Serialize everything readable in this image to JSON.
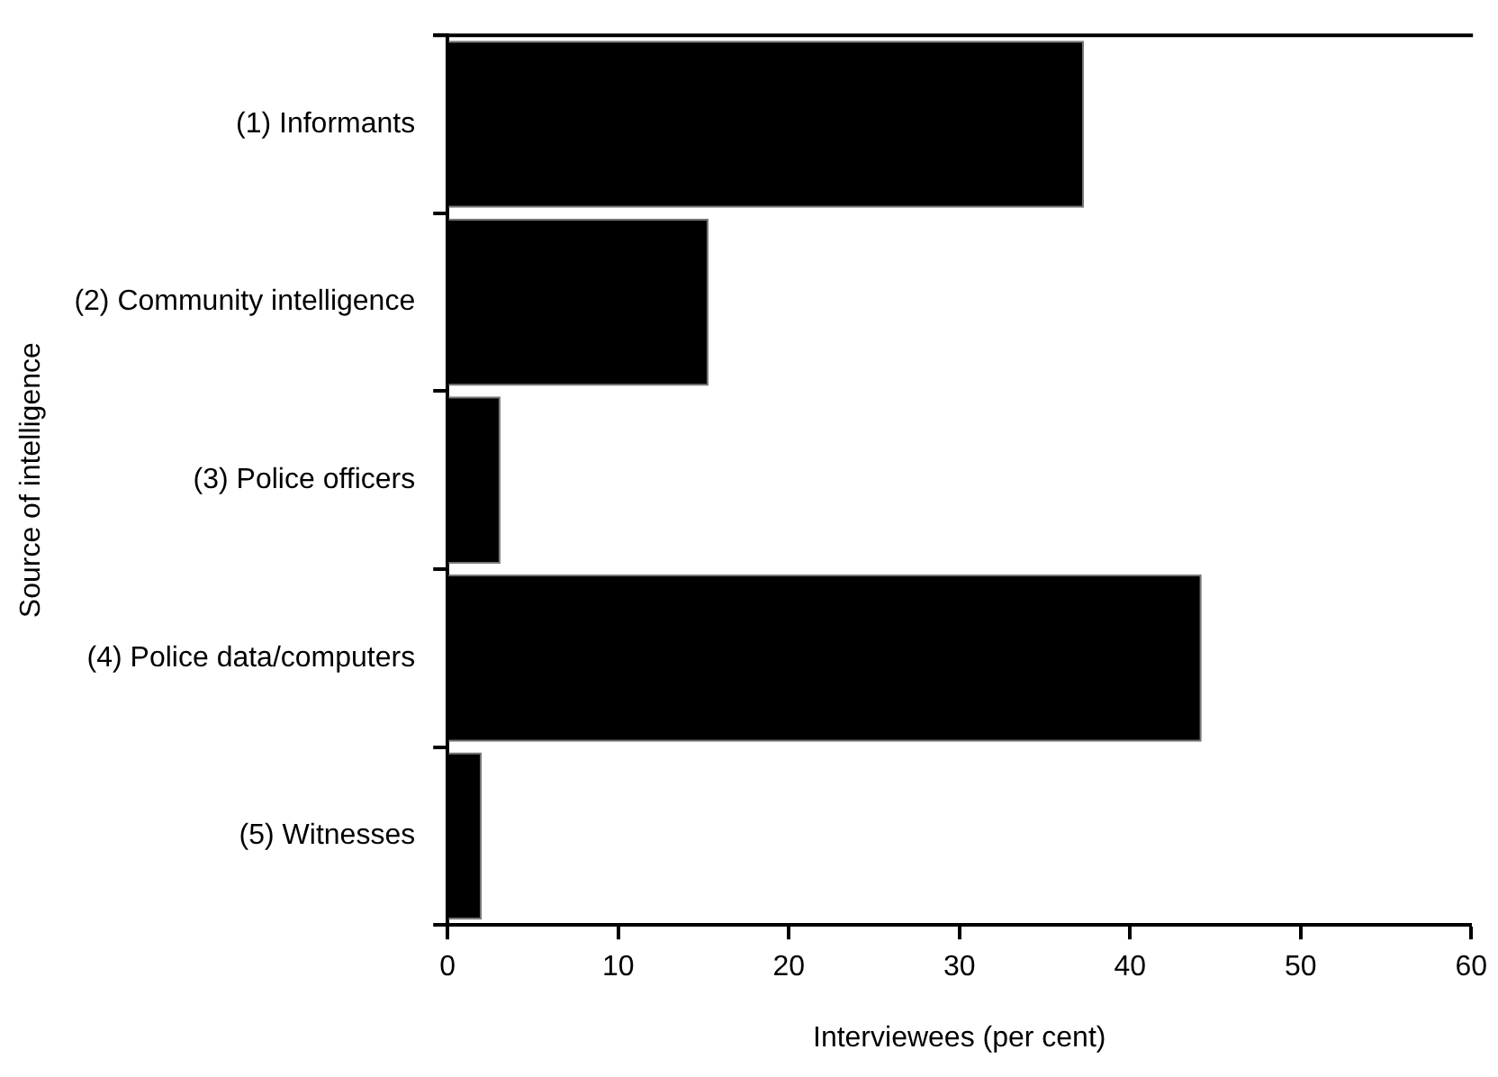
{
  "chart_data": {
    "type": "bar",
    "orientation": "horizontal",
    "xlabel": "Interviewees (per cent)",
    "ylabel": "Source of intelligence",
    "categories": [
      "(1) Informants",
      "(2) Community intelligence",
      "(3) Police officers",
      "(4) Police data/computers",
      "(5) Witnesses"
    ],
    "values": [
      37.3,
      15.3,
      3.1,
      44.2,
      2.0
    ],
    "color": "#000000",
    "xlim": [
      0,
      60
    ],
    "xticks": [
      0,
      10,
      20,
      30,
      40,
      50,
      60
    ],
    "grid": false,
    "legend": false
  }
}
